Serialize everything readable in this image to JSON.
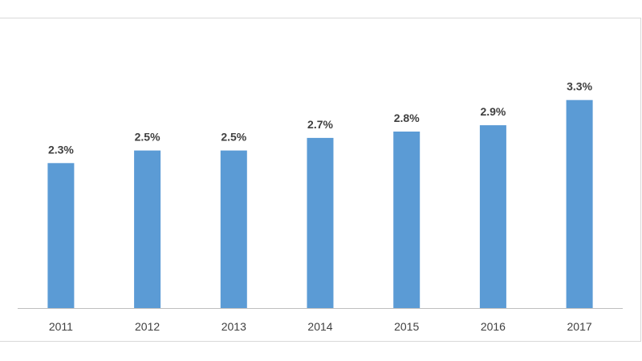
{
  "chart_data": {
    "type": "bar",
    "categories": [
      "2011",
      "2012",
      "2013",
      "2014",
      "2015",
      "2016",
      "2017"
    ],
    "values": [
      2.3,
      2.5,
      2.5,
      2.7,
      2.8,
      2.9,
      3.3
    ],
    "value_labels": [
      "2.3%",
      "2.5%",
      "2.5%",
      "2.7%",
      "2.8%",
      "2.9%",
      "3.3%"
    ],
    "ylim": [
      0,
      3.5
    ],
    "grid": false,
    "legend": "none",
    "bar_color": "#5b9bd5",
    "label_color": "#404040"
  }
}
